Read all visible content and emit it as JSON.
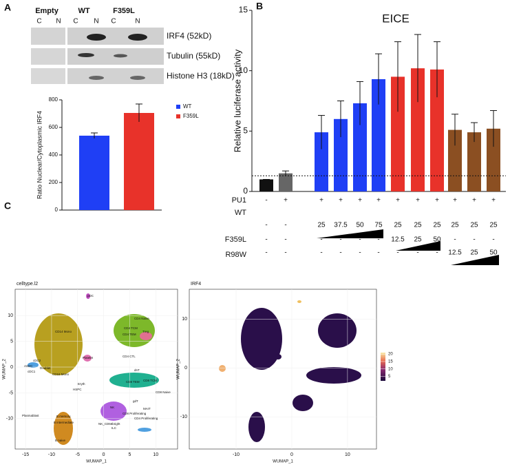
{
  "panel_labels": [
    "A",
    "B",
    "C"
  ],
  "blot": {
    "groups": [
      "Empty",
      "WT",
      "F359L"
    ],
    "lanes": [
      "C",
      "N",
      "C",
      "N",
      "C",
      "N"
    ],
    "bands": [
      "IRF4 (52kD)",
      "Tubulin (55kD)",
      "Histone  H3 (18kD)"
    ]
  },
  "chart_data": [
    {
      "type": "bar",
      "y_label": "Ratio Nuclear/Cytoplasmic IRF4",
      "series": [
        {
          "name": "WT",
          "color": "#1f3ff5",
          "values": [
            540
          ],
          "errors": [
            20
          ]
        },
        {
          "name": "F359L",
          "color": "#e8322a",
          "values": [
            705
          ],
          "errors": [
            65
          ]
        }
      ],
      "ylim": [
        0,
        800
      ],
      "yticks": [
        0,
        200,
        400,
        600,
        800
      ],
      "legend": "upper right"
    },
    {
      "type": "bar",
      "title": "EICE",
      "y_label": "Relative luciferase activity",
      "values": [
        1,
        1.5,
        4.9,
        6,
        7.3,
        9.3,
        9.5,
        10.2,
        10.1,
        5.1,
        4.9,
        5.2
      ],
      "errors": [
        0,
        0.2,
        1.4,
        1.5,
        1.8,
        2.1,
        2.9,
        2.8,
        2.3,
        1.3,
        0.8,
        1.5
      ],
      "colors": [
        "#111111",
        "#666666",
        "#1f3ff5",
        "#1f3ff5",
        "#1f3ff5",
        "#1f3ff5",
        "#e8322a",
        "#e8322a",
        "#e8322a",
        "#8b4f22",
        "#8b4f22",
        "#8b4f22"
      ],
      "ylim": [
        0,
        15
      ],
      "yticks": [
        0,
        5,
        10,
        15
      ],
      "reference_line": 1.3,
      "conditions": [
        {
          "label": "PU1",
          "values": [
            "-",
            "+",
            "+",
            "+",
            "+",
            "+",
            "+",
            "+",
            "+",
            "+",
            "+",
            "+"
          ]
        },
        {
          "label": "WT",
          "values": [
            "-",
            "-",
            "25",
            "37.5",
            "50",
            "75",
            "25",
            "25",
            "25",
            "25",
            "25",
            "25"
          ]
        },
        {
          "label": "F359L",
          "values": [
            "-",
            "-",
            "-",
            "-",
            "-",
            "-",
            "12.5",
            "25",
            "50",
            "-",
            "-",
            "-"
          ]
        },
        {
          "label": "R98W",
          "values": [
            "-",
            "-",
            "-",
            "-",
            "-",
            "-",
            "-",
            "-",
            "-",
            "12.5",
            "25",
            "50"
          ]
        }
      ]
    },
    {
      "type": "umap",
      "title": "celltype.l2",
      "x_label": "WUMAP_1",
      "y_label": "WUMAP_2",
      "xlim": [
        -17,
        14.2
      ],
      "ylim": [
        -15.9,
        15.1
      ],
      "xticks": [
        -15,
        -10,
        -5,
        0,
        5,
        10
      ],
      "yticks": [
        -10,
        -5,
        0,
        5,
        10
      ],
      "cluster_labels": [
        "pDC",
        "CD4 Naive",
        "CD4 TCM",
        "CD4 TEM",
        "Treg",
        "CD4 CTL",
        "CD14 Mono",
        "cDC2",
        "ASDC",
        "cDC1",
        "Doublet",
        "CD16 Mono",
        "Platelet",
        "Eryth",
        "HSPC",
        "dnT",
        "CD8 TEM",
        "CD8 TCM",
        "CD8 Naive",
        "gdT",
        "MAIT",
        "NK",
        "CD8 Proliferating",
        "CD4 Proliferating",
        "NK_CD56bright",
        "ILC",
        "Plasmablast",
        "B memory",
        "B intermediate",
        "B naive"
      ]
    },
    {
      "type": "umap",
      "title": "IRF4",
      "x_label": "WUMAP_1",
      "y_label": "WUMAP_2",
      "xlim": [
        -18.4,
        15.2
      ],
      "ylim": [
        -16.6,
        16.1
      ],
      "xticks": [
        -10,
        0,
        10
      ],
      "yticks": [
        -10,
        0,
        10
      ],
      "colorbar": {
        "lim": [
          2,
          21
        ],
        "ticks": [
          5,
          10,
          15,
          20
        ]
      }
    }
  ]
}
